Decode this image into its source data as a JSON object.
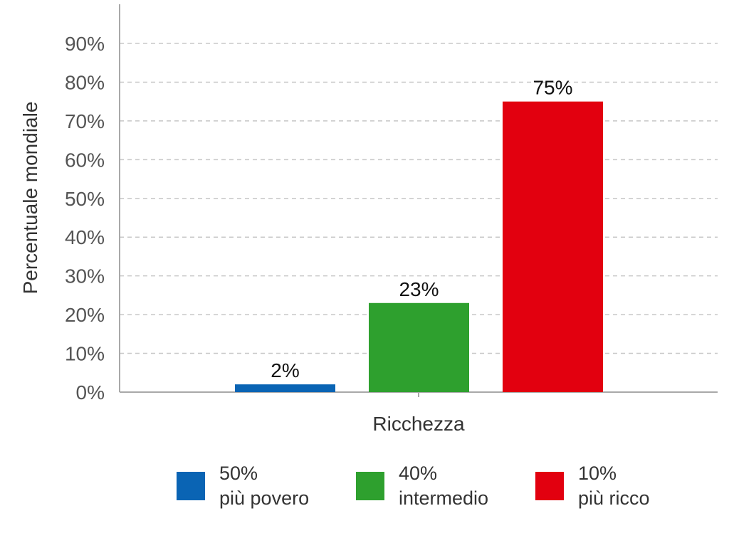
{
  "chart_data": {
    "type": "bar",
    "categories": [
      "50%\npiù povero",
      "40%\nintermedio",
      "10%\npiù ricco"
    ],
    "series": [
      {
        "values": [
          2,
          23,
          75
        ]
      }
    ],
    "data_labels": [
      "2%",
      "23%",
      "75%"
    ],
    "colors": [
      "#0a64b4",
      "#2ea02e",
      "#e2000f"
    ],
    "xlabel": "Ricchezza",
    "ylabel": "Percentuale mondiale",
    "ylim": [
      0,
      90
    ],
    "yticks": [
      0,
      10,
      20,
      30,
      40,
      50,
      60,
      70,
      80,
      90
    ],
    "ytick_labels": [
      "0%",
      "10%",
      "20%",
      "30%",
      "40%",
      "50%",
      "60%",
      "70%",
      "80%",
      "90%"
    ],
    "grid": true,
    "legend_position": "bottom"
  },
  "legend": {
    "items": [
      {
        "line1": "50%",
        "line2": "più povero",
        "color": "#0a64b4"
      },
      {
        "line1": "40%",
        "line2": "intermedio",
        "color": "#2ea02e"
      },
      {
        "line1": "10%",
        "line2": "più ricco",
        "color": "#e2000f"
      }
    ]
  }
}
